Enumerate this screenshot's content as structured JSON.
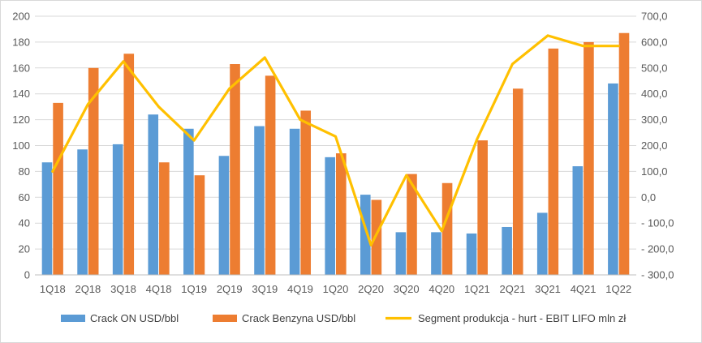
{
  "chart_data": {
    "type": "bar",
    "categories": [
      "1Q18",
      "2Q18",
      "3Q18",
      "4Q18",
      "1Q19",
      "2Q19",
      "3Q19",
      "4Q19",
      "1Q20",
      "2Q20",
      "3Q20",
      "4Q20",
      "1Q21",
      "2Q21",
      "3Q21",
      "4Q21",
      "1Q22"
    ],
    "series": [
      {
        "name": "Crack ON USD/bbl",
        "type": "bar",
        "axis": "left",
        "color": "#5b9bd5",
        "values": [
          87,
          97,
          101,
          124,
          113,
          92,
          115,
          113,
          91,
          62,
          33,
          33,
          32,
          37,
          48,
          84,
          148
        ]
      },
      {
        "name": "Crack Benzyna USD/bbl",
        "type": "bar",
        "axis": "left",
        "color": "#ed7d31",
        "values": [
          133,
          160,
          171,
          87,
          77,
          163,
          154,
          127,
          94,
          58,
          78,
          71,
          104,
          144,
          175,
          180,
          187
        ]
      },
      {
        "name": "Segment produkcja - hurt - EBIT LIFO mln zł",
        "type": "line",
        "axis": "right",
        "color": "#ffc000",
        "values": [
          100,
          360,
          525,
          350,
          220,
          420,
          540,
          300,
          235,
          -185,
          85,
          -130,
          225,
          515,
          625,
          585,
          585
        ]
      }
    ],
    "y_left": {
      "min": 0,
      "max": 200,
      "step": 20,
      "tick_labels": [
        "0",
        "20",
        "40",
        "60",
        "80",
        "100",
        "120",
        "140",
        "160",
        "180",
        "200"
      ]
    },
    "y_right": {
      "min": -300,
      "max": 700,
      "step": 100,
      "tick_labels": [
        "- 300,0",
        "- 200,0",
        "- 100,0",
        "0,0",
        "100,0",
        "200,0",
        "300,0",
        "400,0",
        "500,0",
        "600,0",
        "700,0"
      ]
    },
    "grid": true,
    "legend": "bottom"
  }
}
